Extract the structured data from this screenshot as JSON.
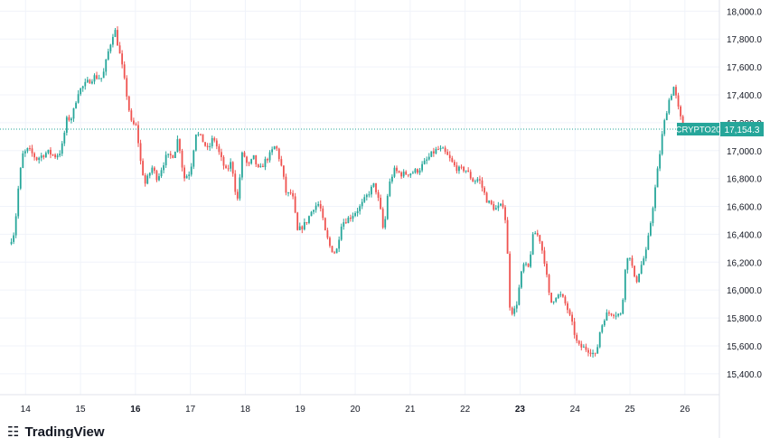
{
  "chart_data": {
    "type": "candlestick",
    "title": "",
    "symbol": "CRYPTO20",
    "last_price": "17,154.3",
    "xlabel": "",
    "ylabel": "",
    "ylim": [
      15250,
      18080
    ],
    "grid": true,
    "x_ticks": [
      {
        "label": "14",
        "x": 0.3,
        "bold": false
      },
      {
        "label": "15",
        "x": 1.3,
        "bold": false
      },
      {
        "label": "16",
        "x": 2.3,
        "bold": true
      },
      {
        "label": "17",
        "x": 3.3,
        "bold": false
      },
      {
        "label": "18",
        "x": 4.3,
        "bold": false
      },
      {
        "label": "19",
        "x": 5.3,
        "bold": false
      },
      {
        "label": "20",
        "x": 6.3,
        "bold": false
      },
      {
        "label": "21",
        "x": 7.3,
        "bold": false
      },
      {
        "label": "22",
        "x": 8.3,
        "bold": false
      },
      {
        "label": "23",
        "x": 9.3,
        "bold": true
      },
      {
        "label": "24",
        "x": 10.3,
        "bold": false
      },
      {
        "label": "25",
        "x": 11.3,
        "bold": false
      },
      {
        "label": "26",
        "x": 12.3,
        "bold": false
      }
    ],
    "y_ticks": [
      {
        "label": "18,000.0",
        "value": 18000
      },
      {
        "label": "17,800.0",
        "value": 17800
      },
      {
        "label": "17,600.0",
        "value": 17600
      },
      {
        "label": "17,400.0",
        "value": 17400
      },
      {
        "label": "17,200.0",
        "value": 17200
      },
      {
        "label": "17,000.0",
        "value": 17000
      },
      {
        "label": "16,800.0",
        "value": 16800
      },
      {
        "label": "16,600.0",
        "value": 16600
      },
      {
        "label": "16,400.0",
        "value": 16400
      },
      {
        "label": "16,200.0",
        "value": 16200
      },
      {
        "label": "16,000.0",
        "value": 16000
      },
      {
        "label": "15,800.0",
        "value": 15800
      },
      {
        "label": "15,600.0",
        "value": 15600
      },
      {
        "label": "15,400.0",
        "value": 15400
      }
    ],
    "price_path": [
      [
        0.0,
        16330
      ],
      [
        0.1,
        16420
      ],
      [
        0.18,
        16780
      ],
      [
        0.25,
        16970
      ],
      [
        0.35,
        17010
      ],
      [
        0.5,
        16940
      ],
      [
        0.7,
        16990
      ],
      [
        0.85,
        16960
      ],
      [
        0.95,
        17000
      ],
      [
        1.05,
        17220
      ],
      [
        1.15,
        17240
      ],
      [
        1.25,
        17420
      ],
      [
        1.4,
        17480
      ],
      [
        1.55,
        17530
      ],
      [
        1.7,
        17520
      ],
      [
        1.8,
        17700
      ],
      [
        1.92,
        17880
      ],
      [
        2.05,
        17620
      ],
      [
        2.15,
        17380
      ],
      [
        2.22,
        17200
      ],
      [
        2.32,
        17170
      ],
      [
        2.4,
        16900
      ],
      [
        2.48,
        16760
      ],
      [
        2.6,
        16880
      ],
      [
        2.7,
        16800
      ],
      [
        2.85,
        16950
      ],
      [
        3.0,
        16970
      ],
      [
        3.08,
        17100
      ],
      [
        3.18,
        16800
      ],
      [
        3.3,
        16850
      ],
      [
        3.4,
        17130
      ],
      [
        3.5,
        17090
      ],
      [
        3.62,
        17000
      ],
      [
        3.72,
        17100
      ],
      [
        3.85,
        16950
      ],
      [
        3.95,
        16850
      ],
      [
        4.05,
        16920
      ],
      [
        4.15,
        16620
      ],
      [
        4.25,
        17000
      ],
      [
        4.35,
        16880
      ],
      [
        4.45,
        16950
      ],
      [
        4.55,
        16850
      ],
      [
        4.65,
        16920
      ],
      [
        4.75,
        16970
      ],
      [
        4.85,
        17040
      ],
      [
        4.95,
        16900
      ],
      [
        5.05,
        16680
      ],
      [
        5.15,
        16700
      ],
      [
        5.25,
        16420
      ],
      [
        5.4,
        16480
      ],
      [
        5.55,
        16600
      ],
      [
        5.65,
        16620
      ],
      [
        5.75,
        16420
      ],
      [
        5.85,
        16300
      ],
      [
        5.95,
        16260
      ],
      [
        6.05,
        16480
      ],
      [
        6.2,
        16520
      ],
      [
        6.4,
        16600
      ],
      [
        6.55,
        16700
      ],
      [
        6.65,
        16760
      ],
      [
        6.75,
        16600
      ],
      [
        6.82,
        16400
      ],
      [
        6.9,
        16730
      ],
      [
        7.0,
        16860
      ],
      [
        7.15,
        16830
      ],
      [
        7.3,
        16840
      ],
      [
        7.45,
        16860
      ],
      [
        7.6,
        16930
      ],
      [
        7.7,
        16980
      ],
      [
        7.8,
        17010
      ],
      [
        7.9,
        17000
      ],
      [
        8.0,
        16950
      ],
      [
        8.1,
        16890
      ],
      [
        8.2,
        16860
      ],
      [
        8.3,
        16870
      ],
      [
        8.45,
        16780
      ],
      [
        8.55,
        16800
      ],
      [
        8.7,
        16640
      ],
      [
        8.85,
        16580
      ],
      [
        8.95,
        16600
      ],
      [
        9.0,
        16620
      ],
      [
        9.05,
        16440
      ],
      [
        9.12,
        15840
      ],
      [
        9.22,
        15860
      ],
      [
        9.35,
        16180
      ],
      [
        9.45,
        16160
      ],
      [
        9.55,
        16420
      ],
      [
        9.65,
        16380
      ],
      [
        9.75,
        16200
      ],
      [
        9.85,
        15900
      ],
      [
        9.95,
        15960
      ],
      [
        10.05,
        15960
      ],
      [
        10.15,
        15880
      ],
      [
        10.25,
        15750
      ],
      [
        10.35,
        15600
      ],
      [
        10.5,
        15580
      ],
      [
        10.6,
        15560
      ],
      [
        10.68,
        15520
      ],
      [
        10.75,
        15700
      ],
      [
        10.85,
        15820
      ],
      [
        10.95,
        15840
      ],
      [
        11.05,
        15830
      ],
      [
        11.15,
        15820
      ],
      [
        11.22,
        16200
      ],
      [
        11.3,
        16250
      ],
      [
        11.4,
        16040
      ],
      [
        11.48,
        16150
      ],
      [
        11.6,
        16280
      ],
      [
        11.7,
        16550
      ],
      [
        11.8,
        16850
      ],
      [
        11.9,
        17150
      ],
      [
        12.0,
        17350
      ],
      [
        12.1,
        17460
      ],
      [
        12.2,
        17260
      ],
      [
        12.28,
        17154
      ]
    ]
  }
}
